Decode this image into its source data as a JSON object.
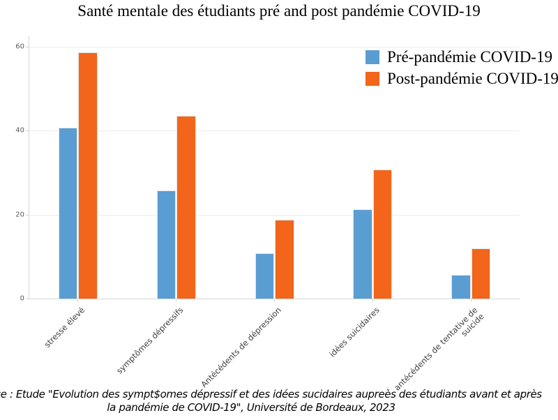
{
  "title": "Santé mentale des étudiants pré and post pandémie COVID-19",
  "source": {
    "line1": "Source : Etude \"Evolution des sympt$omes dépressif et des idées sucidaires aupreès des étudiants avant et après",
    "line2": "la pandémie de COVID-19\", Université de Bordeaux, 2023"
  },
  "chart_data": {
    "type": "bar",
    "categories": [
      "stresse élevé",
      "symptômes dépressifs",
      "Antécédents de dépression",
      "idées suicidaires",
      "antécédents de tentative de\nsuicide"
    ],
    "series": [
      {
        "name": "Pré-pandémie COVID-19",
        "color": "#5a9dd3",
        "values": [
          40.7,
          25.7,
          10.8,
          21.2,
          5.6
        ]
      },
      {
        "name": "Post-pandémie COVID-19",
        "color": "#f2651a",
        "values": [
          58.7,
          43.5,
          18.7,
          30.8,
          11.9
        ]
      }
    ],
    "xlabel": "",
    "ylabel": "",
    "ylim": [
      0,
      60
    ],
    "yticks": [
      0,
      20,
      40,
      60
    ],
    "grid": "horizontal-light-gray",
    "legend_position": "upper-right-frameless-clipped-at-right-edge",
    "bar_edge_color": "#e5e5e5"
  }
}
